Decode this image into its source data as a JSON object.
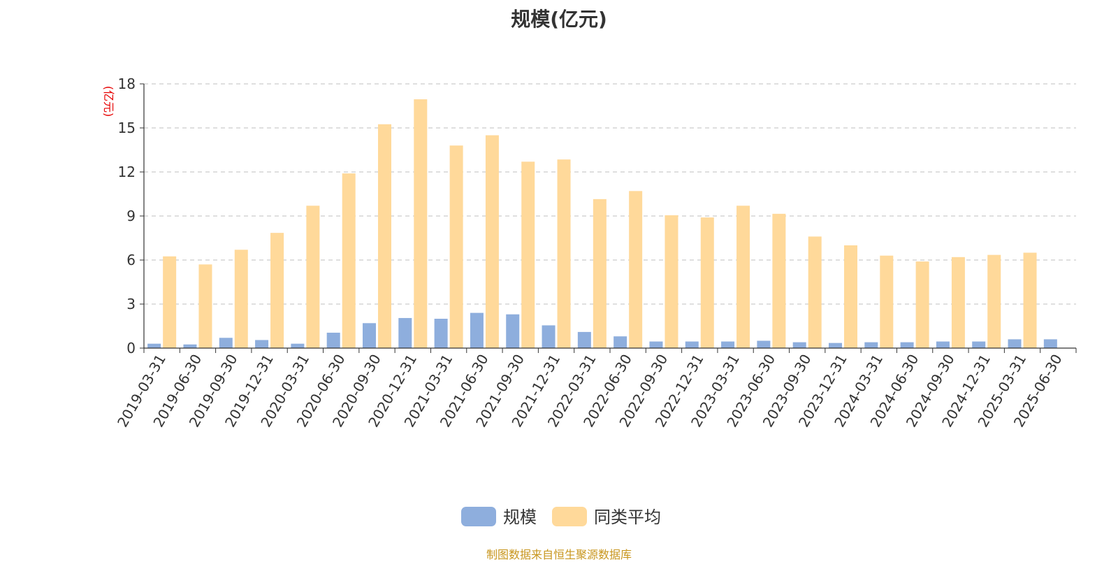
{
  "chart_data": {
    "type": "bar",
    "title": "规模(亿元)",
    "ylabel": "(亿元)",
    "xlabel": "",
    "ylim": [
      0,
      18
    ],
    "yticks": [
      0,
      3,
      6,
      9,
      12,
      15,
      18
    ],
    "grid": true,
    "legend_position": "bottom",
    "categories": [
      "2019-03-31",
      "2019-06-30",
      "2019-09-30",
      "2019-12-31",
      "2020-03-31",
      "2020-06-30",
      "2020-09-30",
      "2020-12-31",
      "2021-03-31",
      "2021-06-30",
      "2021-09-30",
      "2021-12-31",
      "2022-03-31",
      "2022-06-30",
      "2022-09-30",
      "2022-12-31",
      "2023-03-31",
      "2023-06-30",
      "2023-09-30",
      "2023-12-31",
      "2024-03-31",
      "2024-06-30",
      "2024-09-30",
      "2024-12-31",
      "2025-03-31",
      "2025-06-30"
    ],
    "series": [
      {
        "name": "规模",
        "color": "#8eaedd",
        "values": [
          0.3,
          0.25,
          0.7,
          0.55,
          0.3,
          1.05,
          1.7,
          2.05,
          2.0,
          2.4,
          2.3,
          1.55,
          1.1,
          0.8,
          0.45,
          0.45,
          0.45,
          0.5,
          0.4,
          0.35,
          0.4,
          0.4,
          0.45,
          0.45,
          0.6,
          0.6
        ]
      },
      {
        "name": "同类平均",
        "color": "#ffd99a",
        "values": [
          6.25,
          5.7,
          6.7,
          7.85,
          9.7,
          11.9,
          15.25,
          16.95,
          13.8,
          14.5,
          12.7,
          12.85,
          10.15,
          10.7,
          9.05,
          8.9,
          9.7,
          9.15,
          7.6,
          7.0,
          6.3,
          5.9,
          6.2,
          6.35,
          6.5,
          null
        ]
      }
    ]
  },
  "footer": {
    "source": "制图数据来自恒生聚源数据库"
  }
}
